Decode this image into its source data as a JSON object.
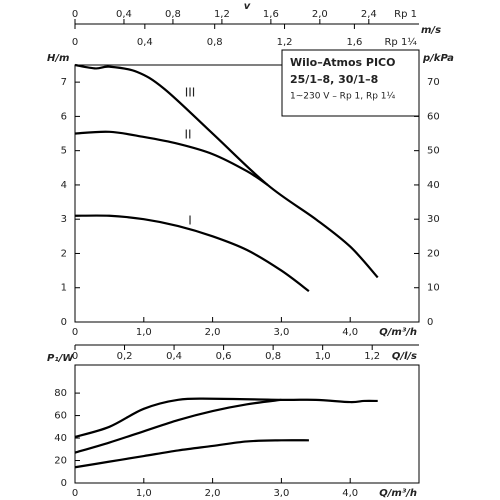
{
  "chart_data": [
    {
      "type": "line",
      "title": "Wilo–Atmos PICO",
      "subtitle": "25/1–8, 30/1–8",
      "note": "1~230 V – Rp 1, Rp 1¼",
      "xlabel": "Q/m³/h",
      "ylabel": "H/m",
      "y2label": "p/kPa",
      "xlim": [
        0,
        5
      ],
      "xticks": [
        0,
        {
          "value": 1,
          "label": "1,0"
        },
        {
          "value": 2,
          "label": "2,0"
        },
        {
          "value": 3,
          "label": "3,0"
        },
        {
          "value": 4,
          "label": "4,0"
        }
      ],
      "ylim": [
        0,
        7.5
      ],
      "yticks": [
        0,
        1,
        2,
        3,
        4,
        5,
        6,
        7
      ],
      "y2lim": [
        0,
        75
      ],
      "y2ticks": [
        0,
        10,
        20,
        30,
        40,
        50,
        60,
        70
      ],
      "top_axes": {
        "label": "v",
        "unit": "m/s",
        "scales": [
          {
            "name": "Rp 1",
            "xlim": [
              0,
              2.81
            ],
            "xticks": [
              0,
              {
                "value": 0.4,
                "label": "0,4"
              },
              {
                "value": 0.8,
                "label": "0,8"
              },
              {
                "value": 1.2,
                "label": "1,2"
              },
              {
                "value": 1.6,
                "label": "1,6"
              },
              {
                "value": 2.0,
                "label": "2,0"
              },
              {
                "value": 2.4,
                "label": "2,4"
              }
            ]
          },
          {
            "name": "Rp 1¼",
            "xlim": [
              0,
              1.97
            ],
            "xticks": [
              0,
              {
                "value": 0.4,
                "label": "0,4"
              },
              {
                "value": 0.8,
                "label": "0,8"
              },
              {
                "value": 1.2,
                "label": "1,2"
              },
              {
                "value": 1.6,
                "label": "1,6"
              }
            ]
          }
        ]
      },
      "series": [
        {
          "name": "III",
          "color": "#000000",
          "x": [
            0,
            0.3,
            0.5,
            0.9,
            1.3,
            2.0,
            2.8,
            3.5,
            4.0,
            4.4
          ],
          "values": [
            7.5,
            7.4,
            7.45,
            7.3,
            6.8,
            5.5,
            4.0,
            3.0,
            2.2,
            1.3
          ]
        },
        {
          "name": "II",
          "color": "#000000",
          "x": [
            0,
            0.5,
            1.0,
            1.5,
            2.0,
            2.5,
            2.8
          ],
          "values": [
            5.5,
            5.55,
            5.4,
            5.2,
            4.9,
            4.4,
            4.0
          ]
        },
        {
          "name": "I",
          "color": "#000000",
          "x": [
            0,
            0.5,
            1.0,
            1.5,
            2.0,
            2.5,
            3.0,
            3.4
          ],
          "values": [
            3.1,
            3.1,
            3.0,
            2.8,
            2.5,
            2.1,
            1.5,
            0.9
          ]
        }
      ]
    },
    {
      "type": "line",
      "xlabel": "Q/m³/h",
      "ylabel": "P₁/W",
      "xlim": [
        0,
        5
      ],
      "xticks": [
        0,
        {
          "value": 1,
          "label": "1,0"
        },
        {
          "value": 2,
          "label": "2,0"
        },
        {
          "value": 3,
          "label": "3,0"
        },
        {
          "value": 4,
          "label": "4,0"
        }
      ],
      "ylim": [
        0,
        105
      ],
      "yticks": [
        0,
        20,
        40,
        60,
        80
      ],
      "top_axis": {
        "label": "Q/l/s",
        "xlim": [
          0,
          1.389
        ],
        "xticks": [
          0,
          {
            "value": 0.2,
            "label": "0,2"
          },
          {
            "value": 0.4,
            "label": "0,4"
          },
          {
            "value": 0.6,
            "label": "0,6"
          },
          {
            "value": 0.8,
            "label": "0,8"
          },
          {
            "value": 1.0,
            "label": "1,0"
          },
          {
            "value": 1.2,
            "label": "1,2"
          }
        ]
      },
      "series": [
        {
          "color": "#000000",
          "x": [
            0,
            0.5,
            1.0,
            1.5,
            2.0,
            3.0,
            3.5,
            4.0,
            4.2,
            4.4
          ],
          "values": [
            41,
            50,
            66,
            74,
            75,
            74,
            74,
            72,
            73,
            73
          ]
        },
        {
          "color": "#000000",
          "x": [
            0,
            0.5,
            1.0,
            1.5,
            2.0,
            2.5,
            3.0
          ],
          "values": [
            27,
            36,
            46,
            56,
            64,
            70,
            74
          ]
        },
        {
          "color": "#000000",
          "x": [
            0,
            0.5,
            1.0,
            1.5,
            2.0,
            2.5,
            3.0,
            3.4
          ],
          "values": [
            14,
            19,
            24,
            29,
            33,
            37,
            38,
            38
          ]
        }
      ]
    }
  ]
}
